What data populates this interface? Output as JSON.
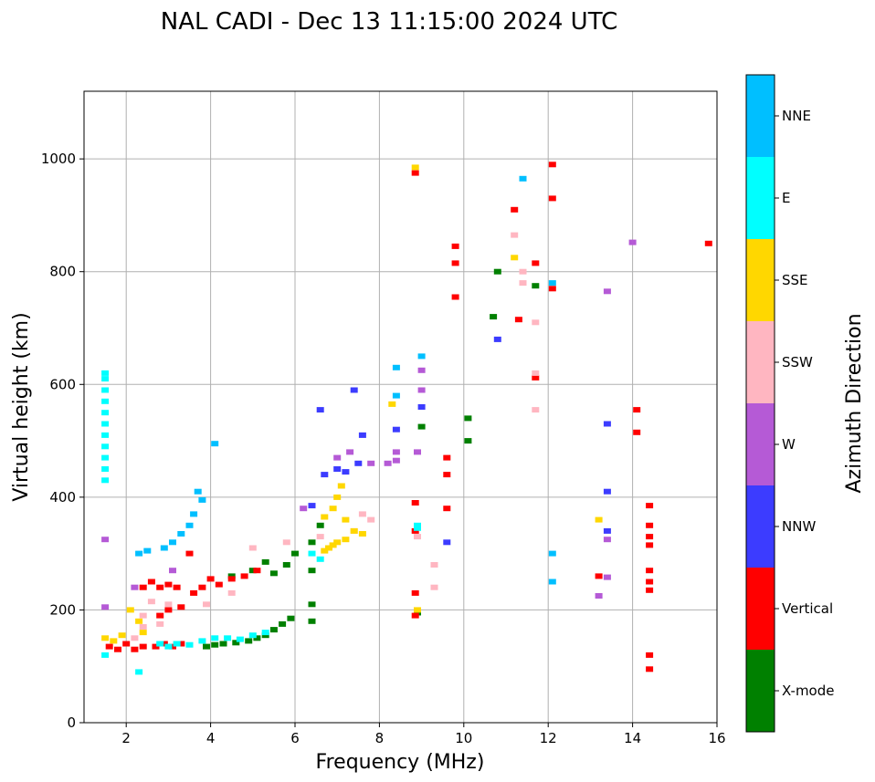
{
  "chart_data": {
    "type": "scatter",
    "title": "NAL CADI - Dec 13 11:15:00 2024 UTC",
    "xlabel": "Frequency (MHz)",
    "ylabel": "Virtual height (km)",
    "xlim": [
      1,
      16
    ],
    "ylim": [
      0,
      1120
    ],
    "xticks": [
      2,
      4,
      6,
      8,
      10,
      12,
      14,
      16
    ],
    "yticks": [
      0,
      200,
      400,
      600,
      800,
      1000
    ],
    "grid": true,
    "colorbar": {
      "label": "Azimuth Direction",
      "categories": [
        {
          "name": "X-mode",
          "color": "#008000"
        },
        {
          "name": "Vertical",
          "color": "#ff0000"
        },
        {
          "name": "NNW",
          "color": "#3c3cff"
        },
        {
          "name": "W",
          "color": "#b55ad6"
        },
        {
          "name": "SSW",
          "color": "#ffb6c1"
        },
        {
          "name": "SSE",
          "color": "#ffd700"
        },
        {
          "name": "E",
          "color": "#00ffff"
        },
        {
          "name": "NNE",
          "color": "#00bfff"
        }
      ]
    },
    "series": [
      {
        "name": "X-mode",
        "points": [
          [
            3.9,
            135
          ],
          [
            4.1,
            138
          ],
          [
            4.3,
            140
          ],
          [
            4.6,
            142
          ],
          [
            4.9,
            145
          ],
          [
            5.1,
            150
          ],
          [
            5.3,
            155
          ],
          [
            5.5,
            165
          ],
          [
            5.7,
            175
          ],
          [
            5.9,
            185
          ],
          [
            5.5,
            265
          ],
          [
            5.8,
            280
          ],
          [
            6.0,
            300
          ],
          [
            6.4,
            180
          ],
          [
            6.4,
            210
          ],
          [
            6.4,
            270
          ],
          [
            6.4,
            320
          ],
          [
            6.6,
            350
          ],
          [
            8.9,
            195
          ],
          [
            9.0,
            525
          ],
          [
            10.1,
            500
          ],
          [
            10.1,
            540
          ],
          [
            10.8,
            800
          ],
          [
            10.7,
            720
          ],
          [
            11.7,
            775
          ],
          [
            4.5,
            260
          ],
          [
            5.0,
            270
          ],
          [
            5.3,
            285
          ]
        ]
      },
      {
        "name": "Vertical",
        "points": [
          [
            1.6,
            135
          ],
          [
            1.8,
            130
          ],
          [
            2.0,
            140
          ],
          [
            2.2,
            130
          ],
          [
            2.4,
            135
          ],
          [
            2.7,
            135
          ],
          [
            2.9,
            140
          ],
          [
            3.1,
            135
          ],
          [
            3.3,
            140
          ],
          [
            2.4,
            240
          ],
          [
            2.6,
            250
          ],
          [
            2.8,
            240
          ],
          [
            3.0,
            245
          ],
          [
            3.2,
            240
          ],
          [
            2.8,
            190
          ],
          [
            3.0,
            200
          ],
          [
            3.3,
            205
          ],
          [
            3.6,
            230
          ],
          [
            3.8,
            240
          ],
          [
            4.0,
            255
          ],
          [
            4.2,
            245
          ],
          [
            4.5,
            255
          ],
          [
            4.8,
            260
          ],
          [
            5.1,
            270
          ],
          [
            3.5,
            300
          ],
          [
            8.85,
            975
          ],
          [
            8.85,
            390
          ],
          [
            8.85,
            340
          ],
          [
            8.85,
            230
          ],
          [
            8.85,
            190
          ],
          [
            9.6,
            470
          ],
          [
            9.6,
            440
          ],
          [
            9.6,
            380
          ],
          [
            9.8,
            845
          ],
          [
            9.8,
            815
          ],
          [
            9.8,
            755
          ],
          [
            11.2,
            910
          ],
          [
            11.3,
            715
          ],
          [
            11.7,
            612
          ],
          [
            11.7,
            815
          ],
          [
            12.1,
            990
          ],
          [
            12.1,
            930
          ],
          [
            12.1,
            770
          ],
          [
            13.2,
            260
          ],
          [
            14.1,
            555
          ],
          [
            14.1,
            515
          ],
          [
            14.4,
            385
          ],
          [
            14.4,
            350
          ],
          [
            14.4,
            330
          ],
          [
            14.4,
            315
          ],
          [
            14.4,
            270
          ],
          [
            14.4,
            250
          ],
          [
            14.4,
            235
          ],
          [
            14.4,
            120
          ],
          [
            14.4,
            95
          ],
          [
            15.8,
            850
          ]
        ]
      },
      {
        "name": "NNW",
        "points": [
          [
            6.7,
            440
          ],
          [
            7.0,
            450
          ],
          [
            7.2,
            445
          ],
          [
            7.5,
            460
          ],
          [
            7.6,
            510
          ],
          [
            6.6,
            555
          ],
          [
            7.4,
            590
          ],
          [
            6.4,
            385
          ],
          [
            8.4,
            520
          ],
          [
            9.0,
            560
          ],
          [
            10.8,
            680
          ],
          [
            13.4,
            530
          ],
          [
            13.4,
            410
          ],
          [
            13.4,
            340
          ],
          [
            9.6,
            320
          ]
        ]
      },
      {
        "name": "W",
        "points": [
          [
            7.0,
            470
          ],
          [
            7.3,
            480
          ],
          [
            7.8,
            460
          ],
          [
            8.2,
            460
          ],
          [
            8.4,
            465
          ],
          [
            8.4,
            480
          ],
          [
            8.9,
            480
          ],
          [
            9.0,
            590
          ],
          [
            9.0,
            625
          ],
          [
            13.4,
            325
          ],
          [
            13.4,
            765
          ],
          [
            13.2,
            225
          ],
          [
            13.4,
            258
          ],
          [
            14.0,
            852
          ],
          [
            6.2,
            380
          ],
          [
            3.1,
            270
          ],
          [
            2.2,
            240
          ],
          [
            1.5,
            205
          ],
          [
            1.5,
            325
          ]
        ]
      },
      {
        "name": "SSW",
        "points": [
          [
            2.2,
            150
          ],
          [
            2.4,
            170
          ],
          [
            2.4,
            190
          ],
          [
            2.8,
            175
          ],
          [
            3.0,
            210
          ],
          [
            2.6,
            215
          ],
          [
            3.9,
            210
          ],
          [
            4.5,
            230
          ],
          [
            5.0,
            310
          ],
          [
            5.8,
            320
          ],
          [
            6.6,
            330
          ],
          [
            7.4,
            340
          ],
          [
            7.6,
            370
          ],
          [
            7.8,
            360
          ],
          [
            8.9,
            330
          ],
          [
            9.3,
            280
          ],
          [
            9.3,
            240
          ],
          [
            11.2,
            865
          ],
          [
            11.4,
            800
          ],
          [
            11.4,
            780
          ],
          [
            11.7,
            710
          ],
          [
            11.7,
            555
          ],
          [
            11.7,
            620
          ]
        ]
      },
      {
        "name": "SSE",
        "points": [
          [
            1.5,
            150
          ],
          [
            1.7,
            145
          ],
          [
            1.9,
            155
          ],
          [
            2.1,
            200
          ],
          [
            2.3,
            180
          ],
          [
            2.4,
            160
          ],
          [
            6.7,
            305
          ],
          [
            6.8,
            310
          ],
          [
            6.9,
            315
          ],
          [
            7.0,
            320
          ],
          [
            7.2,
            325
          ],
          [
            7.4,
            340
          ],
          [
            7.6,
            335
          ],
          [
            6.7,
            365
          ],
          [
            6.9,
            380
          ],
          [
            7.0,
            400
          ],
          [
            7.1,
            420
          ],
          [
            7.2,
            360
          ],
          [
            8.9,
            200
          ],
          [
            8.85,
            985
          ],
          [
            11.2,
            825
          ],
          [
            13.2,
            360
          ],
          [
            8.3,
            565
          ]
        ]
      },
      {
        "name": "E",
        "points": [
          [
            1.5,
            430
          ],
          [
            1.5,
            450
          ],
          [
            1.5,
            470
          ],
          [
            1.5,
            490
          ],
          [
            1.5,
            510
          ],
          [
            1.5,
            530
          ],
          [
            1.5,
            550
          ],
          [
            1.5,
            570
          ],
          [
            1.5,
            590
          ],
          [
            1.5,
            610
          ],
          [
            1.5,
            620
          ],
          [
            2.3,
            90
          ],
          [
            1.5,
            120
          ],
          [
            2.8,
            140
          ],
          [
            3.0,
            135
          ],
          [
            3.2,
            140
          ],
          [
            3.5,
            138
          ],
          [
            3.8,
            145
          ],
          [
            4.1,
            150
          ],
          [
            4.4,
            150
          ],
          [
            4.7,
            148
          ],
          [
            5.0,
            155
          ],
          [
            5.3,
            160
          ],
          [
            6.4,
            300
          ],
          [
            6.6,
            290
          ],
          [
            8.9,
            350
          ],
          [
            8.9,
            345
          ]
        ]
      },
      {
        "name": "NNE",
        "points": [
          [
            2.3,
            300
          ],
          [
            2.5,
            305
          ],
          [
            2.9,
            310
          ],
          [
            3.1,
            320
          ],
          [
            3.3,
            335
          ],
          [
            3.5,
            350
          ],
          [
            3.6,
            370
          ],
          [
            3.8,
            395
          ],
          [
            3.7,
            410
          ],
          [
            4.1,
            495
          ],
          [
            8.4,
            630
          ],
          [
            8.4,
            580
          ],
          [
            9.0,
            650
          ],
          [
            11.4,
            965
          ],
          [
            12.1,
            780
          ],
          [
            12.1,
            300
          ],
          [
            12.1,
            250
          ]
        ]
      }
    ]
  }
}
